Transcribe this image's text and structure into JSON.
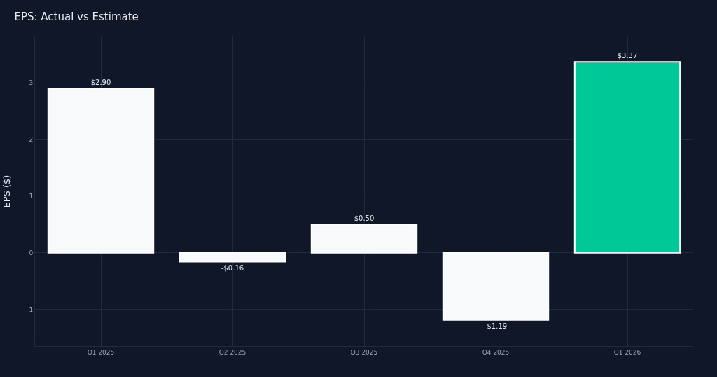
{
  "chart_data": {
    "type": "bar",
    "title": "EPS: Actual vs Estimate",
    "ylabel": "EPS ($)",
    "categories": [
      "Q1 2025",
      "Q2 2025",
      "Q3 2025",
      "Q4 2025",
      "Q1 2026"
    ],
    "values": [
      2.9,
      -0.16,
      0.5,
      -1.19,
      3.37
    ],
    "colors": [
      "#f8f9fb",
      "#f8f9fb",
      "#f8f9fb",
      "#f8f9fb",
      "#00c896"
    ],
    "value_labels": [
      "$2.90",
      "-$0.16",
      "$0.50",
      "-$1.19",
      "$3.37"
    ],
    "ylim": [
      -1.65,
      3.82
    ],
    "yticks": [
      {
        "value": -1,
        "label": "−1"
      },
      0,
      1,
      2,
      3
    ],
    "grid": true,
    "legend": false
  }
}
